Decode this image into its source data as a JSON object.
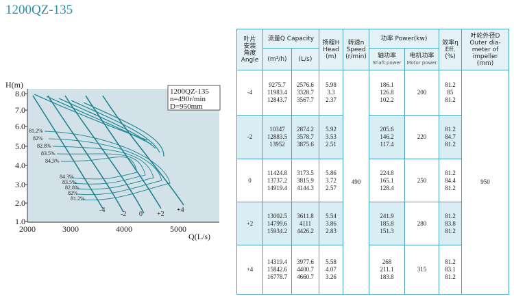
{
  "title": "1200QZ-135",
  "chart": {
    "y_label": "H(m)",
    "x_label": "Q(L/s)",
    "yticks": [
      "8.0",
      "7.0",
      "6.0",
      "5.0",
      "4.0",
      "3.0",
      "2.0",
      "1.0"
    ],
    "xticks": [
      "2000",
      "3000",
      "4000",
      "5000"
    ],
    "note": [
      "1200QZ-135",
      "n=490r/min",
      "D=950mm"
    ],
    "eff_upper": [
      "81.2%",
      "82%",
      "82.8%",
      "83.5%",
      "84.3%"
    ],
    "eff_lower": [
      "84.3%",
      "83.5%",
      "82.8%",
      "82%",
      "81.2%"
    ],
    "angle_labels": [
      "-4",
      "-2",
      "0",
      "+2",
      "+4"
    ]
  },
  "table": {
    "h_angle": [
      "叶片",
      "安装",
      "角度",
      "Angle"
    ],
    "h_capacity": "流量Q Capacity",
    "h_m3h": "(m³/h)",
    "h_ls": "(L/s)",
    "h_head": [
      "扬程H",
      "Head",
      "(m)"
    ],
    "h_speed": [
      "转速n",
      "Speed",
      "(r/min)"
    ],
    "h_power": "功率 Power(kw)",
    "h_shaft": [
      "轴功率",
      "Shaft power"
    ],
    "h_motor": [
      "电机功率",
      "Motor power"
    ],
    "h_eff": [
      "效率η",
      "Eff.",
      "(%)"
    ],
    "h_dia": [
      "叶轮外径D",
      "Outer dia-",
      "meter of",
      "impeller",
      "(mm)"
    ],
    "speed": "490",
    "diameter": "950",
    "rows": [
      {
        "angle": "-4",
        "m3h": [
          "9275.7",
          "11983.4",
          "12843.7"
        ],
        "ls": [
          "2576.6",
          "3328.7",
          "3567.7"
        ],
        "head": [
          "5.98",
          "3.3",
          "2.37"
        ],
        "shaft": [
          "186.1",
          "126.8",
          "102.2"
        ],
        "motor": "200",
        "eff": [
          "81.2",
          "85",
          "81.2"
        ]
      },
      {
        "angle": "-2",
        "m3h": [
          "10347",
          "12883.5",
          "13952"
        ],
        "ls": [
          "2874.2",
          "3578.7",
          "3875.6"
        ],
        "head": [
          "5.92",
          "3.53",
          "2.51"
        ],
        "shaft": [
          "205.6",
          "146.2",
          "117.4"
        ],
        "motor": "220",
        "eff": [
          "81.2",
          "84.7",
          "81.2"
        ]
      },
      {
        "angle": "0",
        "m3h": [
          "11424.8",
          "13737.2",
          "14919.4"
        ],
        "ls": [
          "3173.5",
          "3815.9",
          "4144.3"
        ],
        "head": [
          "5.86",
          "3.72",
          "2.57"
        ],
        "shaft": [
          "224.8",
          "165.1",
          "128.4"
        ],
        "motor": "250",
        "eff": [
          "81.2",
          "84.4",
          "81.2"
        ]
      },
      {
        "angle": "+2",
        "m3h": [
          "13002.5",
          "14799.6",
          "15934.2"
        ],
        "ls": [
          "3611.8",
          "4111",
          "4426.2"
        ],
        "head": [
          "5.54",
          "3.86",
          "2.83"
        ],
        "shaft": [
          "241.9",
          "185.8",
          "151.3"
        ],
        "motor": "280",
        "eff": [
          "81.2",
          "83.8",
          "81.2"
        ]
      },
      {
        "angle": "+4",
        "m3h": [
          "14319.4",
          "15842.6",
          "16778.7"
        ],
        "ls": [
          "3977.6",
          "4400.7",
          "4660.7"
        ],
        "head": [
          "5.58",
          "4.07",
          "3.26"
        ],
        "shaft": [
          "268",
          "211.1",
          "183.8"
        ],
        "motor": "315",
        "eff": [
          "81.2",
          "83.1",
          "81.2"
        ]
      }
    ]
  }
}
